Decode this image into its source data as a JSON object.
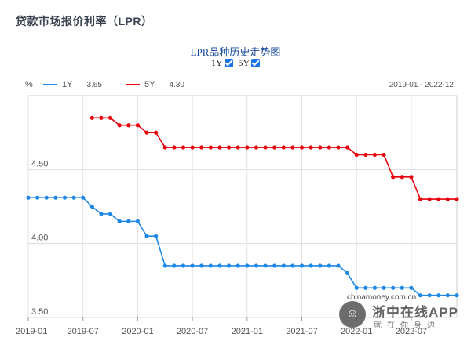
{
  "page": {
    "title": "贷款市场报价利率（LPR）"
  },
  "chart_header": {
    "title": "LPR品种历史走势图",
    "toggles": [
      {
        "label": "1Y",
        "checked": true
      },
      {
        "label": "5Y",
        "checked": true
      }
    ],
    "unit": "%",
    "legend": [
      {
        "name": "1Y",
        "value": "3.65",
        "color": "#1e88e5"
      },
      {
        "name": "5Y",
        "value": "4.30",
        "color": "#e8000b"
      }
    ],
    "date_range": "2019-01 - 2022-12"
  },
  "watermark": {
    "domain": "chinamoney.com.cn",
    "app": "浙中在线APP",
    "slogan": "就在你身边"
  },
  "chart_data": {
    "type": "line",
    "title": "LPR品种历史走势图",
    "xlabel": "",
    "ylabel": "%",
    "ylim": [
      3.5,
      5.0
    ],
    "y_ticks": [
      "3.50",
      "4.00",
      "4.50"
    ],
    "x_ticks": [
      "2019-01",
      "2019-07",
      "2020-01",
      "2020-07",
      "2021-01",
      "2021-07",
      "2022-01",
      "2022-07"
    ],
    "grid": true,
    "legend_position": "top-left",
    "x": [
      "2019-01",
      "2019-02",
      "2019-03",
      "2019-04",
      "2019-05",
      "2019-06",
      "2019-07",
      "2019-08",
      "2019-09",
      "2019-10",
      "2019-11",
      "2019-12",
      "2020-01",
      "2020-02",
      "2020-03",
      "2020-04",
      "2020-05",
      "2020-06",
      "2020-07",
      "2020-08",
      "2020-09",
      "2020-10",
      "2020-11",
      "2020-12",
      "2021-01",
      "2021-02",
      "2021-03",
      "2021-04",
      "2021-05",
      "2021-06",
      "2021-07",
      "2021-08",
      "2021-09",
      "2021-10",
      "2021-11",
      "2021-12",
      "2022-01",
      "2022-02",
      "2022-03",
      "2022-04",
      "2022-05",
      "2022-06",
      "2022-07",
      "2022-08",
      "2022-09",
      "2022-10",
      "2022-11",
      "2022-12"
    ],
    "series": [
      {
        "name": "1Y",
        "color": "#1e88e5",
        "values": [
          4.31,
          4.31,
          4.31,
          4.31,
          4.31,
          4.31,
          4.31,
          4.25,
          4.2,
          4.2,
          4.15,
          4.15,
          4.15,
          4.05,
          4.05,
          3.85,
          3.85,
          3.85,
          3.85,
          3.85,
          3.85,
          3.85,
          3.85,
          3.85,
          3.85,
          3.85,
          3.85,
          3.85,
          3.85,
          3.85,
          3.85,
          3.85,
          3.85,
          3.85,
          3.85,
          3.8,
          3.7,
          3.7,
          3.7,
          3.7,
          3.7,
          3.7,
          3.7,
          3.65,
          3.65,
          3.65,
          3.65,
          3.65
        ]
      },
      {
        "name": "5Y",
        "color": "#e8000b",
        "values": [
          null,
          null,
          null,
          null,
          null,
          null,
          null,
          4.85,
          4.85,
          4.85,
          4.8,
          4.8,
          4.8,
          4.75,
          4.75,
          4.65,
          4.65,
          4.65,
          4.65,
          4.65,
          4.65,
          4.65,
          4.65,
          4.65,
          4.65,
          4.65,
          4.65,
          4.65,
          4.65,
          4.65,
          4.65,
          4.65,
          4.65,
          4.65,
          4.65,
          4.65,
          4.6,
          4.6,
          4.6,
          4.6,
          4.45,
          4.45,
          4.45,
          4.3,
          4.3,
          4.3,
          4.3,
          4.3
        ]
      }
    ]
  }
}
